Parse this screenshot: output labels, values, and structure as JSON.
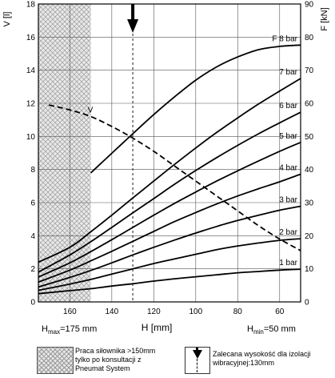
{
  "chart_data": {
    "type": "line",
    "xlabel": "H [mm]",
    "ylabel_left": "V [l]",
    "ylabel_right": "F [kN]",
    "x_reversed": true,
    "xlim": [
      175,
      50
    ],
    "ylim_left": [
      0,
      18
    ],
    "ylim_right": [
      0,
      90
    ],
    "x_ticks": [
      160,
      140,
      120,
      100,
      80,
      60
    ],
    "y_ticks_left": [
      0,
      2,
      4,
      6,
      8,
      10,
      12,
      14,
      16,
      18
    ],
    "y_ticks_right": [
      0,
      10,
      20,
      30,
      40,
      50,
      60,
      70,
      80,
      90
    ],
    "h_max_label": {
      "prefix": "H",
      "sub": "max",
      "suffix": "=175 mm"
    },
    "h_min_label": {
      "prefix": "H",
      "sub": "min",
      "suffix": "=50 mm"
    },
    "hatched_region_x": [
      175,
      150
    ],
    "recommended_height_x": 130,
    "series": [
      {
        "name": "F 1 bar",
        "label": "1 bar",
        "x": [
          175,
          160,
          150,
          140,
          130,
          120,
          110,
          100,
          90,
          80,
          70,
          60,
          50
        ],
        "y": [
          2.5,
          3.4,
          4.0,
          4.8,
          5.5,
          6.3,
          7.0,
          7.6,
          8.2,
          8.8,
          9.2,
          9.6,
          9.9
        ]
      },
      {
        "name": "F 2 bar",
        "label": "2 bar",
        "x": [
          175,
          160,
          150,
          140,
          130,
          120,
          110,
          100,
          90,
          80,
          70,
          60,
          50
        ],
        "y": [
          3.5,
          5.4,
          6.8,
          8.4,
          10.0,
          11.6,
          13.0,
          14.4,
          15.8,
          16.9,
          17.8,
          18.6,
          19.1
        ]
      },
      {
        "name": "F 3 bar",
        "label": "3 bar",
        "x": [
          175,
          160,
          150,
          140,
          130,
          120,
          110,
          100,
          90,
          80,
          70,
          60,
          50
        ],
        "y": [
          4.5,
          7.4,
          9.5,
          11.8,
          14.2,
          16.5,
          18.7,
          20.8,
          22.8,
          24.6,
          26.2,
          27.7,
          28.9
        ]
      },
      {
        "name": "F 4 bar",
        "label": "4 bar",
        "x": [
          175,
          160,
          150,
          140,
          130,
          120,
          110,
          100,
          90,
          80,
          70,
          60,
          50
        ],
        "y": [
          6.0,
          9.6,
          12.4,
          15.3,
          18.3,
          21.3,
          24.3,
          27.0,
          29.6,
          32.0,
          34.2,
          36.3,
          38.6
        ]
      },
      {
        "name": "F 5 bar",
        "label": "5 bar",
        "x": [
          175,
          160,
          150,
          140,
          130,
          120,
          110,
          100,
          90,
          80,
          70,
          60,
          50
        ],
        "y": [
          7.5,
          11.8,
          15.2,
          18.8,
          22.5,
          26.2,
          29.8,
          33.2,
          36.5,
          39.6,
          42.6,
          45.5,
          48.2
        ]
      },
      {
        "name": "F 6 bar",
        "label": "6 bar",
        "x": [
          175,
          160,
          150,
          140,
          130,
          120,
          110,
          100,
          90,
          80,
          70,
          60,
          50
        ],
        "y": [
          9.0,
          14.2,
          18.2,
          22.5,
          26.9,
          31.2,
          35.6,
          39.7,
          43.6,
          47.3,
          50.8,
          54.1,
          57.3
        ]
      },
      {
        "name": "F 7 bar",
        "label": "7 bar",
        "x": [
          175,
          160,
          150,
          140,
          130,
          120,
          110,
          100,
          90,
          80,
          70,
          60,
          50
        ],
        "y": [
          12.0,
          16.5,
          21.2,
          26.2,
          31.4,
          36.5,
          41.6,
          46.5,
          51.2,
          55.6,
          59.8,
          63.7,
          67.5
        ]
      },
      {
        "name": "F 8 bar",
        "label": "F 8 bar",
        "x": [
          150,
          140,
          130,
          120,
          110,
          100,
          90,
          80,
          70,
          60,
          50
        ],
        "y": [
          39.0,
          44.9,
          50.8,
          56.6,
          62.0,
          67.0,
          71.0,
          74.0,
          76.2,
          77.2,
          77.6
        ]
      }
    ],
    "volume_curve": {
      "name": "V",
      "label": "V",
      "x": [
        170,
        160,
        150,
        140,
        130,
        120,
        110,
        100,
        90,
        80,
        70,
        60,
        50
      ],
      "y": [
        11.9,
        11.6,
        11.2,
        10.6,
        9.9,
        9.1,
        8.2,
        7.3,
        6.4,
        5.5,
        4.6,
        3.8,
        3.1
      ]
    }
  },
  "legend": {
    "hatched_text": [
      "Praca siłownika >150mm",
      "tylko po konsultacji z",
      "Pneumat System"
    ],
    "arrow_text": [
      "Zalecana wysokość dla izolacji",
      "wibracyjnej:130mm"
    ]
  }
}
